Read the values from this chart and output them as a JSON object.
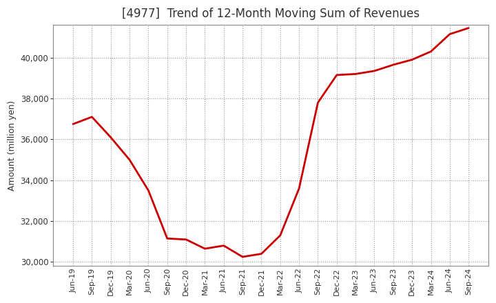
{
  "title": "[4977]  Trend of 12-Month Moving Sum of Revenues",
  "ylabel": "Amount (million yen)",
  "line_color": "#cc0000",
  "line_width": 2.0,
  "background_color": "#ffffff",
  "plot_bg_color": "#ffffff",
  "grid_color": "#999999",
  "ylim": [
    29800,
    41600
  ],
  "yticks": [
    30000,
    32000,
    34000,
    36000,
    38000,
    40000
  ],
  "x_labels": [
    "Jun-19",
    "Sep-19",
    "Dec-19",
    "Mar-20",
    "Jun-20",
    "Sep-20",
    "Dec-20",
    "Mar-21",
    "Jun-21",
    "Sep-21",
    "Dec-21",
    "Mar-22",
    "Jun-22",
    "Sep-22",
    "Dec-22",
    "Mar-23",
    "Jun-23",
    "Sep-23",
    "Dec-23",
    "Mar-24",
    "Jun-24",
    "Sep-24"
  ],
  "values": [
    36750,
    37100,
    36100,
    35000,
    33500,
    31150,
    31100,
    30650,
    30800,
    30250,
    30400,
    31300,
    33600,
    37800,
    39150,
    39200,
    39350,
    39650,
    39900,
    40300,
    41150,
    41450
  ]
}
